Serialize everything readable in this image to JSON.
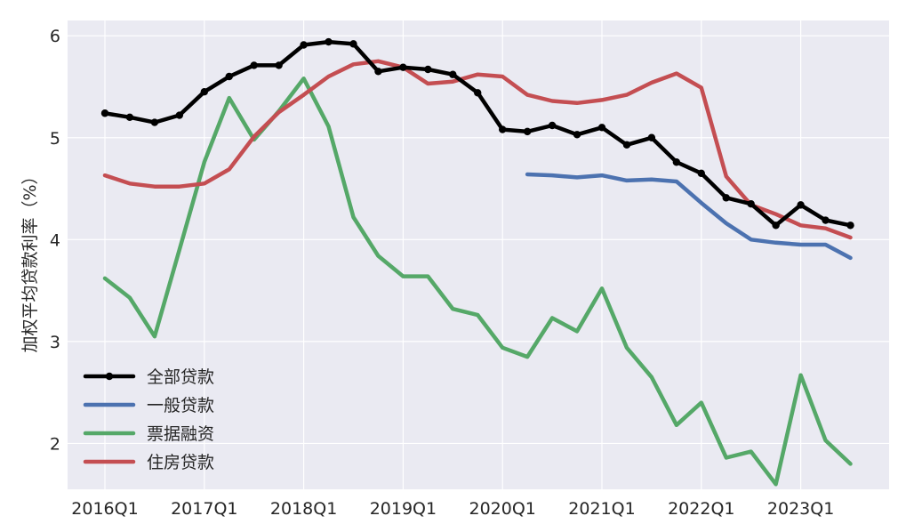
{
  "chart_data": {
    "type": "line",
    "title": "",
    "xlabel": "",
    "ylabel": "加权平均贷款利率（%）",
    "ylim": [
      1.55,
      6.15
    ],
    "yticks": [
      2,
      3,
      4,
      5,
      6
    ],
    "xticks": [
      "2016Q1",
      "2017Q1",
      "2018Q1",
      "2019Q1",
      "2020Q1",
      "2021Q1",
      "2022Q1",
      "2023Q1"
    ],
    "grid": true,
    "legend": "lower-left",
    "categories": [
      "2016Q1",
      "2016Q2",
      "2016Q3",
      "2016Q4",
      "2017Q1",
      "2017Q2",
      "2017Q3",
      "2017Q4",
      "2018Q1",
      "2018Q2",
      "2018Q3",
      "2018Q4",
      "2019Q1",
      "2019Q2",
      "2019Q3",
      "2019Q4",
      "2020Q1",
      "2020Q2",
      "2020Q3",
      "2020Q4",
      "2021Q1",
      "2021Q2",
      "2021Q3",
      "2021Q4",
      "2022Q1",
      "2022Q2",
      "2022Q3",
      "2022Q4",
      "2023Q1",
      "2023Q2",
      "2023Q3"
    ],
    "series": [
      {
        "name": "全部贷款",
        "color": "#000000",
        "markers": true,
        "values": [
          5.24,
          5.2,
          5.15,
          5.22,
          5.45,
          5.6,
          5.71,
          5.71,
          5.91,
          5.94,
          5.92,
          5.65,
          5.69,
          5.67,
          5.62,
          5.44,
          5.08,
          5.06,
          5.12,
          5.03,
          5.1,
          4.93,
          5.0,
          4.76,
          4.65,
          4.41,
          4.35,
          4.14,
          4.34,
          4.19,
          4.14
        ]
      },
      {
        "name": "一般贷款",
        "color": "#4c72b0",
        "markers": false,
        "values": [
          null,
          null,
          null,
          null,
          null,
          null,
          null,
          null,
          null,
          null,
          null,
          null,
          null,
          null,
          null,
          null,
          null,
          4.64,
          4.63,
          4.61,
          4.63,
          4.58,
          4.59,
          4.57,
          4.36,
          4.16,
          4.0,
          3.97,
          3.95,
          3.95,
          3.82
        ]
      },
      {
        "name": "票据融资",
        "color": "#55a868",
        "markers": false,
        "values": [
          3.62,
          3.43,
          3.05,
          3.9,
          4.76,
          5.39,
          4.98,
          5.26,
          5.58,
          5.11,
          4.22,
          3.84,
          3.64,
          3.64,
          3.32,
          3.26,
          2.94,
          2.85,
          3.23,
          3.1,
          3.52,
          2.94,
          2.65,
          2.18,
          2.4,
          1.86,
          1.92,
          1.6,
          2.67,
          2.03,
          1.8
        ]
      },
      {
        "name": "住房贷款",
        "color": "#c44e52",
        "markers": false,
        "values": [
          4.63,
          4.55,
          4.52,
          4.52,
          4.55,
          4.69,
          5.01,
          5.25,
          5.42,
          5.6,
          5.72,
          5.75,
          5.69,
          5.53,
          5.55,
          5.62,
          5.6,
          5.42,
          5.36,
          5.34,
          5.37,
          5.42,
          5.54,
          5.63,
          5.49,
          4.62,
          4.34,
          4.25,
          4.14,
          4.11,
          4.02
        ]
      }
    ]
  }
}
